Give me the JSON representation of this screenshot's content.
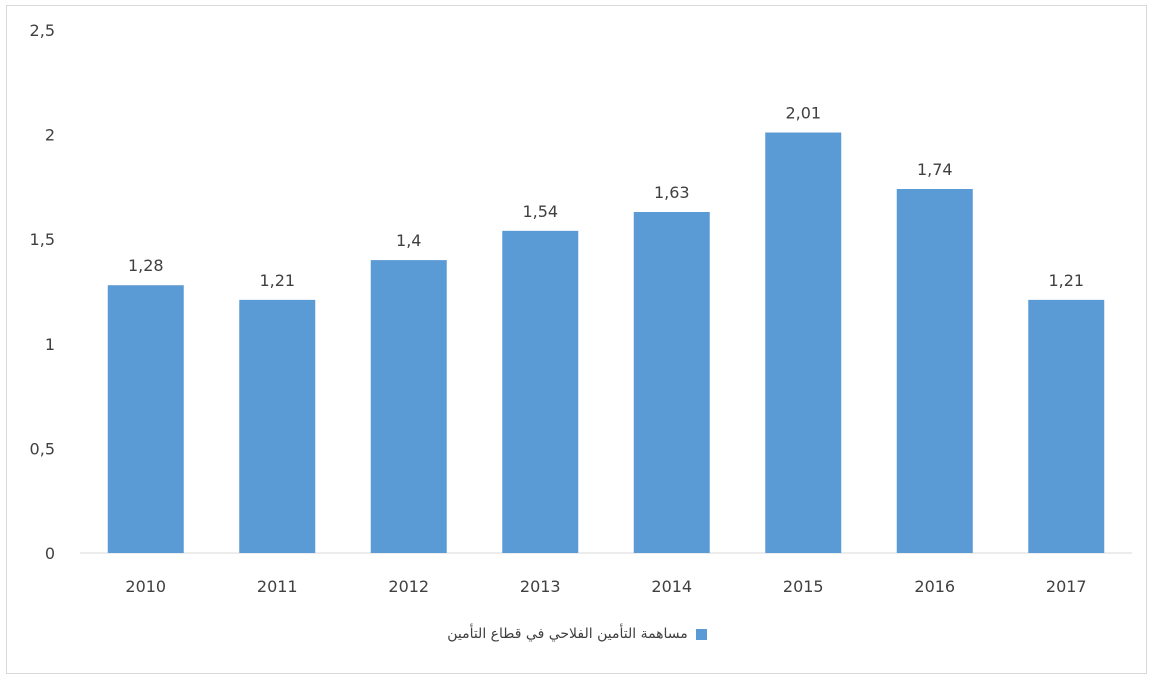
{
  "chart_data": {
    "type": "bar",
    "categories": [
      "2010",
      "2011",
      "2012",
      "2013",
      "2014",
      "2015",
      "2016",
      "2017"
    ],
    "series": [
      {
        "name": "مساهمة التأمين الفلاحي في قطاع التأمين",
        "values": [
          1.28,
          1.21,
          1.4,
          1.54,
          1.63,
          2.01,
          1.74,
          1.21
        ],
        "data_labels": [
          "1,28",
          "1,21",
          "1,4",
          "1,54",
          "1,63",
          "2,01",
          "1,74",
          "1,21"
        ],
        "color": "#5b9bd5"
      }
    ],
    "y_ticks": [
      {
        "value": 0,
        "label": "0"
      },
      {
        "value": 0.5,
        "label": "0,5"
      },
      {
        "value": 1,
        "label": "1"
      },
      {
        "value": 1.5,
        "label": "1,5"
      },
      {
        "value": 2,
        "label": "2"
      },
      {
        "value": 2.5,
        "label": "2,5"
      }
    ],
    "ylim": [
      0,
      2.5
    ],
    "grid": false,
    "legend_position": "bottom",
    "title": "",
    "xlabel": "",
    "ylabel": ""
  },
  "colors": {
    "axis": "#d9d9d9",
    "text": "#404040",
    "frame": "#d9d9d9"
  }
}
